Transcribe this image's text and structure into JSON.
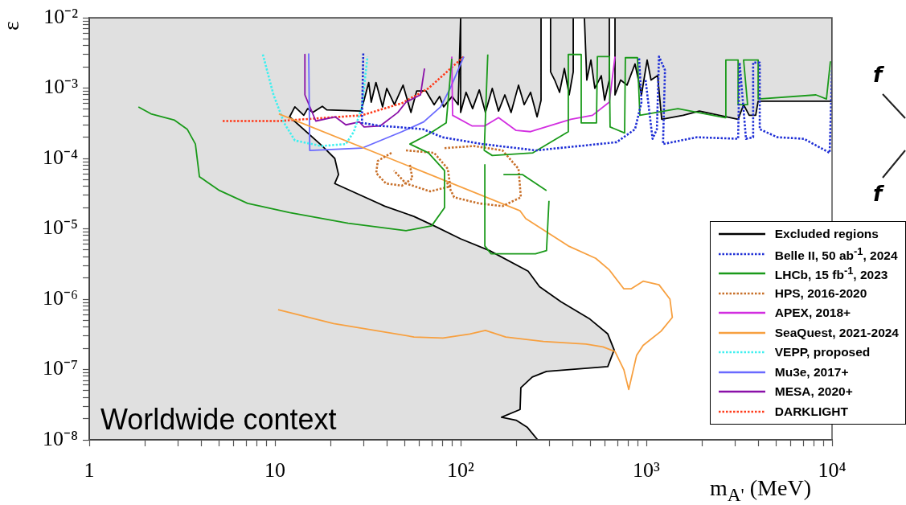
{
  "chart_data": {
    "type": "line",
    "xlabel": "m$_{A'}$ (MeV)",
    "ylabel": "ε",
    "log": "xy",
    "grid": false,
    "legend": "bottom right",
    "marker": "none",
    "xlim": [
      1,
      10000
    ],
    "ylim": [
      1e-08,
      0.01
    ],
    "xticks": [
      1,
      {
        "value": 2,
        "label": null
      },
      {
        "value": 3,
        "label": null
      },
      {
        "value": 4,
        "label": null
      },
      {
        "value": 5,
        "label": null
      },
      {
        "value": 6,
        "label": null
      },
      {
        "value": 7,
        "label": null
      },
      {
        "value": 8,
        "label": null
      },
      {
        "value": 9,
        "label": null
      },
      10,
      {
        "value": 20,
        "label": null
      },
      {
        "value": 30,
        "label": null
      },
      {
        "value": 40,
        "label": null
      },
      {
        "value": 50,
        "label": null
      },
      {
        "value": 60,
        "label": null
      },
      {
        "value": 70,
        "label": null
      },
      {
        "value": 80,
        "label": null
      },
      {
        "value": 90,
        "label": null
      },
      {
        "value": 100,
        "label": "10²"
      },
      {
        "value": 200,
        "label": null
      },
      {
        "value": 300,
        "label": null
      },
      {
        "value": 400,
        "label": null
      },
      {
        "value": 500,
        "label": null
      },
      {
        "value": 600,
        "label": null
      },
      {
        "value": 700,
        "label": null
      },
      {
        "value": 800,
        "label": null
      },
      {
        "value": 900,
        "label": null
      },
      {
        "value": 1000,
        "label": "10³"
      },
      {
        "value": 2000,
        "label": null
      },
      {
        "value": 3000,
        "label": null
      },
      {
        "value": 4000,
        "label": null
      },
      {
        "value": 5000,
        "label": null
      },
      {
        "value": 6000,
        "label": null
      },
      {
        "value": 7000,
        "label": null
      },
      {
        "value": 8000,
        "label": null
      },
      {
        "value": 9000,
        "label": null
      },
      {
        "value": 10000,
        "label": "10⁴"
      }
    ],
    "yticks": [
      {
        "value": 1e-08,
        "label": "10⁻⁸"
      },
      {
        "value": 2e-08,
        "label": null
      },
      {
        "value": 3e-08,
        "label": null
      },
      {
        "value": 4e-08,
        "label": null
      },
      {
        "value": 5e-08,
        "label": null
      },
      {
        "value": 6e-08,
        "label": null
      },
      {
        "value": 7e-08,
        "label": null
      },
      {
        "value": 8e-08,
        "label": null
      },
      {
        "value": 9e-08,
        "label": null
      },
      {
        "value": 1e-07,
        "label": "10⁻⁷"
      },
      {
        "value": 2e-07,
        "label": null
      },
      {
        "value": 3e-07,
        "label": null
      },
      {
        "value": 4e-07,
        "label": null
      },
      {
        "value": 5e-07,
        "label": null
      },
      {
        "value": 6e-07,
        "label": null
      },
      {
        "value": 7e-07,
        "label": null
      },
      {
        "value": 8e-07,
        "label": null
      },
      {
        "value": 9e-07,
        "label": null
      },
      {
        "value": 1e-06,
        "label": "10⁻⁶"
      },
      {
        "value": 2e-06,
        "label": null
      },
      {
        "value": 3e-06,
        "label": null
      },
      {
        "value": 4e-06,
        "label": null
      },
      {
        "value": 5e-06,
        "label": null
      },
      {
        "value": 6e-06,
        "label": null
      },
      {
        "value": 7e-06,
        "label": null
      },
      {
        "value": 8e-06,
        "label": null
      },
      {
        "value": 9e-06,
        "label": null
      },
      {
        "value": 1e-05,
        "label": "10⁻⁵"
      },
      {
        "value": 2e-05,
        "label": null
      },
      {
        "value": 3e-05,
        "label": null
      },
      {
        "value": 4e-05,
        "label": null
      },
      {
        "value": 5e-05,
        "label": null
      },
      {
        "value": 6e-05,
        "label": null
      },
      {
        "value": 7e-05,
        "label": null
      },
      {
        "value": 8e-05,
        "label": null
      },
      {
        "value": 9e-05,
        "label": null
      },
      {
        "value": 0.0001,
        "label": "10⁻⁴"
      },
      {
        "value": 0.0002,
        "label": null
      },
      {
        "value": 0.0003,
        "label": null
      },
      {
        "value": 0.0004,
        "label": null
      },
      {
        "value": 0.0005,
        "label": null
      },
      {
        "value": 0.0006,
        "label": null
      },
      {
        "value": 0.0007,
        "label": null
      },
      {
        "value": 0.0008,
        "label": null
      },
      {
        "value": 0.0009,
        "label": null
      },
      {
        "value": 0.001,
        "label": "10⁻³"
      },
      {
        "value": 0.002,
        "label": null
      },
      {
        "value": 0.003,
        "label": null
      },
      {
        "value": 0.004,
        "label": null
      },
      {
        "value": 0.005,
        "label": null
      },
      {
        "value": 0.006,
        "label": null
      },
      {
        "value": 0.007,
        "label": null
      },
      {
        "value": 0.008,
        "label": null
      },
      {
        "value": 0.009,
        "label": null
      },
      {
        "value": 0.01,
        "label": "10⁻²"
      }
    ],
    "annotations": [
      "Worldwide context",
      "f",
      "f"
    ],
    "series": [
      {
        "name": "Excluded regions",
        "type": "area",
        "color": "#000000",
        "line_style": "solid",
        "x": [
          1,
          260,
          229,
          199,
          166,
          209,
          211,
          243,
          290,
          620,
          671,
          620,
          497,
          347,
          266,
          231,
          143,
          100,
          72,
          56,
          39,
          21,
          22,
          21,
          18,
          12,
          12.8,
          14.3,
          15,
          16,
          18,
          19,
          29,
          30,
          32,
          33,
          35,
          38,
          40,
          44,
          49,
          54,
          58,
          65,
          72,
          77,
          81,
          90,
          97,
          100,
          100,
          107,
          116,
          126,
          136,
          148,
          160,
          173,
          187,
          205,
          220,
          238,
          258,
          271,
          271,
          305,
          305,
          321,
          341,
          362,
          384,
          404,
          404,
          464,
          478,
          503,
          528,
          572,
          596,
          632,
          632,
          678,
          678,
          727,
          787,
          869,
          942,
          1010,
          1060,
          1150,
          1210,
          1580,
          1930,
          3120,
          3340,
          3580,
          3880,
          4000,
          10000,
          10000,
          1,
          1
        ],
        "values": [
          1e-08,
          1e-08,
          1.5e-08,
          1.9e-08,
          2.1e-08,
          2.7e-08,
          5.5e-08,
          7.8e-08,
          9.4e-08,
          1.1e-07,
          1.9e-07,
          3.2e-07,
          5.2e-07,
          9.2e-07,
          1.5e-06,
          2.5e-06,
          4.9e-06,
          7.2e-06,
          1.1e-05,
          1.5e-05,
          2.1e-05,
          4.4e-05,
          5.9e-05,
          0.0001,
          0.00015,
          0.00039,
          0.00054,
          0.00041,
          0.00051,
          0.00045,
          0.00055,
          0.00049,
          0.00047,
          0.00063,
          0.0012,
          0.00063,
          0.0012,
          0.00054,
          0.00099,
          0.00058,
          0.0011,
          0.00045,
          0.00091,
          0.00091,
          0.00058,
          0.00076,
          0.00054,
          0.00076,
          0.00058,
          0.01,
          0.00045,
          0.00087,
          0.00051,
          0.00094,
          0.00045,
          0.00099,
          0.00047,
          0.0008,
          0.00045,
          0.0011,
          0.00058,
          0.00087,
          0.00039,
          0.00067,
          0.01,
          0.01,
          0.0017,
          0.0013,
          0.00087,
          0.0019,
          0.0008,
          0.0017,
          0.01,
          0.01,
          0.0013,
          0.0025,
          0.00099,
          0.0015,
          0.00067,
          0.0013,
          0.01,
          0.01,
          0.0008,
          0.0013,
          0.0011,
          0.0022,
          0.0008,
          0.0025,
          0.0013,
          0.0015,
          0.00036,
          0.00041,
          0.00047,
          0.00036,
          0.00058,
          0.00041,
          0.00041,
          0.00065,
          0.00065,
          0.01,
          0.01,
          1e-08
        ]
      },
      {
        "name": "Belle II, 50 ab$^{-1}$, 2024",
        "color": "#1f2fd6",
        "line_style": "dotted",
        "x": [
          29.9,
          29.4,
          36.9,
          45,
          63,
          79.5,
          131,
          255,
          692,
          869,
          942,
          914,
          null,
          991,
          1080,
          1140,
          1170,
          1260,
          1230,
          1870,
          3120,
          3180,
          3440,
          3760,
          3760,
          4080,
          4080,
          5080,
          7050,
          9710,
          10000
        ],
        "values": [
          0.0031,
          0.00032,
          0.00029,
          0.00028,
          0.00026,
          0.0002,
          0.00016,
          0.00013,
          0.00017,
          0.00026,
          0.00063,
          0.0027,
          null,
          0.0013,
          0.00019,
          0.00026,
          0.0028,
          0.0018,
          0.00016,
          0.0002,
          0.00019,
          0.0023,
          0.00019,
          0.0002,
          0.0023,
          0.0023,
          0.00026,
          0.0002,
          0.00019,
          0.00012,
          0.0018
        ]
      },
      {
        "name": "LHCb, 15 fb$^{-1}$, 2023",
        "color": "#1a9a1a",
        "line_style": "solid",
        "x": [
          1.84,
          2.15,
          2.88,
          3.37,
          3.73,
          3.92,
          5.03,
          7.12,
          12,
          24.8,
          50.8,
          69.8,
          81.9,
          81.9,
          67.1,
          53.3,
          67.1,
          83.6,
          89.6,
          null,
          135,
          135,
          146,
          253,
          290,
          299,
          null,
          170,
          215,
          290,
          null,
          140,
          134,
          148,
          245,
          380,
          380,
          446,
          446,
          539,
          545,
          632,
          638,
          764,
          771,
          896,
          923,
          1480,
          2660,
          2680,
          3120,
          3120,
          3510,
          3340,
          4000,
          4000,
          8190,
          9330,
          9800
        ],
        "values": [
          0.00054,
          0.00043,
          0.00035,
          0.00026,
          0.00016,
          5.5e-05,
          3.5e-05,
          2.3e-05,
          1.7e-05,
          1.2e-05,
          9.4e-06,
          1.1e-05,
          2e-05,
          6.7e-05,
          0.00012,
          0.00016,
          0.00022,
          0.00032,
          0.0026,
          null,
          8.1e-05,
          5.7e-06,
          4.4e-06,
          4.4e-06,
          4.9e-06,
          2.5e-05,
          null,
          5.9e-05,
          5.9e-05,
          3.5e-05,
          null,
          0.003,
          0.00013,
          0.00011,
          0.00012,
          0.00024,
          0.003,
          0.003,
          0.00032,
          0.00032,
          0.0028,
          0.0028,
          0.00028,
          0.00023,
          0.0027,
          0.0027,
          0.00041,
          0.00051,
          0.00038,
          0.0025,
          0.0025,
          0.00058,
          0.00058,
          0.0025,
          0.0025,
          0.0007,
          0.0008,
          0.0007,
          0.0024
        ]
      },
      {
        "name": "HPS, 2016-2020",
        "color": "#c8702a",
        "line_style": "dotted",
        "x": [
          42.4,
          35.8,
          35.1,
          39.6,
          48.3,
          55,
          53.3,
          null,
          50.8,
          72,
          85.3,
          87.9,
          68.5,
          50.8,
          43.7,
          null,
          81.9,
          118,
          168,
          205,
          211,
          168,
          125,
          92.3,
          83.6
        ],
        "values": [
          0.00012,
          9.2e-05,
          6.2e-05,
          4.4e-05,
          4.1e-05,
          5.2e-05,
          8.1e-05,
          null,
          0.00013,
          0.00012,
          7.1e-05,
          4e-05,
          3.4e-05,
          4.4e-05,
          6.7e-05,
          null,
          0.00014,
          0.00015,
          0.00013,
          7.1e-05,
          2.8e-05,
          2.1e-05,
          2.3e-05,
          2.8e-05,
          4.8e-05
        ]
      },
      {
        "name": "APEX, 2018+",
        "color": "#d22ee0",
        "line_style": "solid",
        "x": [
          89.6,
          90.5,
          115,
          135,
          160,
          199,
          238,
          392,
          513,
          632,
          678
        ],
        "values": [
          0.0028,
          0.00041,
          0.00029,
          0.00029,
          0.00038,
          0.00025,
          0.00024,
          0.00036,
          0.00041,
          0.00063,
          0.0028
        ]
      },
      {
        "name": "SeaQuest, 2021-2024",
        "color": "#f7a040",
        "line_style": "solid",
        "x": [
          10.5,
          209,
          224,
          380,
          534,
          632,
          757,
          827,
          961,
          1170,
          1340,
          1380,
          1200,
          961,
          887,
          804,
          757,
          678,
          584,
          473,
          279,
          175,
          136,
          112,
          80.3,
          56.1,
          20.7,
          10.4
        ],
        "values": [
          0.00043,
          1.8e-05,
          1.4e-05,
          5.7e-06,
          3.8e-06,
          2.6e-06,
          1.4e-06,
          1.4e-06,
          1.8e-06,
          1.6e-06,
          1e-06,
          5.5e-07,
          3.5e-07,
          2.2e-07,
          1.6e-07,
          5.2e-08,
          9.9e-08,
          1.8e-07,
          2.1e-07,
          2.3e-07,
          2.5e-07,
          2.9e-07,
          3.6e-07,
          3.2e-07,
          2.8e-07,
          2.9e-07,
          4.5e-07,
          7.1e-07
        ]
      },
      {
        "name": "VEPP, proposed",
        "color": "#3ef0f0",
        "line_style": "dotted",
        "x": [
          8.61,
          9.8,
          11.2,
          12.8,
          17.8,
          24.1,
          26.6,
          29.4,
          31.5
        ],
        "values": [
          0.003,
          0.00082,
          0.00032,
          0.00018,
          0.00015,
          0.00016,
          0.00024,
          0.00054,
          0.0028
        ]
      },
      {
        "name": "Mu3e, 2017+",
        "color": "#6a6aff",
        "line_style": "solid",
        "x": [
          15.2,
          15.4,
          29.4,
          48.3,
          63.2,
          78,
          87.9,
          104
        ],
        "values": [
          0.0031,
          0.00013,
          0.00014,
          0.00024,
          0.00033,
          0.00054,
          0.00099,
          0.0028
        ]
      },
      {
        "name": "MESA, 2020+",
        "color": "#8a10a8",
        "line_style": "solid",
        "x": [
          14.5,
          14.5,
          16.6,
          21.1,
          24.1,
          28.5,
          30.2,
          36.9,
          45.9,
          50.8,
          60.8,
          63.9
        ],
        "values": [
          0.003,
          0.0008,
          0.00034,
          0.00039,
          0.0003,
          0.00033,
          0.00028,
          0.00029,
          0.00045,
          0.00063,
          0.0008,
          0.0019
        ]
      },
      {
        "name": "DARKLIGHT",
        "color": "#ff3a1a",
        "line_style": "dotted",
        "x": [
          5.23,
          10.5,
          29.4,
          48.3,
          67.1,
          104
        ],
        "values": [
          0.00034,
          0.00034,
          0.00041,
          0.00061,
          0.00099,
          0.0028
        ]
      }
    ]
  }
}
